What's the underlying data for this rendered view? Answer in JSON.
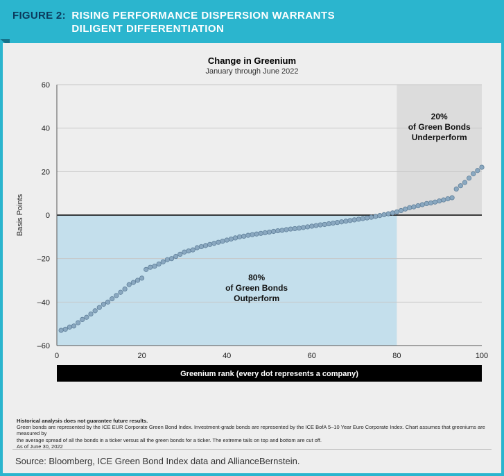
{
  "figure_label": "FIGURE 2:",
  "figure_title_line1": "RISING PERFORMANCE DISPERSION WARRANTS",
  "figure_title_line2": "DILIGENT DIFFERENTIATION",
  "chart": {
    "type": "scatter",
    "title": "Change in Greenium",
    "subtitle": "January through June 2022",
    "ylabel": "Basis Points",
    "xlabel_bar": "Greenium rank (every dot represents a company)",
    "xlim": [
      0,
      100
    ],
    "ylim": [
      -60,
      60
    ],
    "yticks": [
      -60,
      -40,
      -20,
      0,
      20,
      40,
      60
    ],
    "xticks": [
      0,
      20,
      40,
      60,
      80,
      100
    ],
    "background_color": "#eeeeee",
    "grid_color": "#c7c7c7",
    "axis_color": "#555555",
    "zero_line_color": "#000000",
    "marker_color": "#8aa8c0",
    "marker_stroke": "#5f7f99",
    "marker_radius": 3.2,
    "label_fontsize": 11,
    "tick_fontsize": 11,
    "xlabel_bar_bg": "#000000",
    "xlabel_bar_text_color": "#ffffff",
    "regions": {
      "outperform": {
        "x_range": [
          0,
          80
        ],
        "y_range": [
          -60,
          0
        ],
        "fill": "#bcdceb",
        "fill_opacity": 0.85,
        "label_line1": "80%",
        "label_line2": "of Green Bonds",
        "label_line3": "Outperform"
      },
      "underperform": {
        "x_range": [
          80,
          100
        ],
        "y_range": [
          0,
          60
        ],
        "fill": "#d9d9d9",
        "fill_opacity": 0.9,
        "label_line1": "20%",
        "label_line2": "of Green Bonds",
        "label_line3": "Underperform"
      }
    },
    "points": [
      {
        "x": 1,
        "y": -53
      },
      {
        "x": 2,
        "y": -52.5
      },
      {
        "x": 3,
        "y": -51.5
      },
      {
        "x": 4,
        "y": -51
      },
      {
        "x": 5,
        "y": -49.5
      },
      {
        "x": 6,
        "y": -48
      },
      {
        "x": 7,
        "y": -47
      },
      {
        "x": 8,
        "y": -45.5
      },
      {
        "x": 9,
        "y": -44
      },
      {
        "x": 10,
        "y": -42.5
      },
      {
        "x": 11,
        "y": -41
      },
      {
        "x": 12,
        "y": -40
      },
      {
        "x": 13,
        "y": -38.5
      },
      {
        "x": 14,
        "y": -37
      },
      {
        "x": 15,
        "y": -35.5
      },
      {
        "x": 16,
        "y": -34
      },
      {
        "x": 17,
        "y": -32
      },
      {
        "x": 18,
        "y": -31
      },
      {
        "x": 19,
        "y": -30
      },
      {
        "x": 20,
        "y": -29
      },
      {
        "x": 21,
        "y": -25
      },
      {
        "x": 22,
        "y": -24
      },
      {
        "x": 23,
        "y": -23.5
      },
      {
        "x": 24,
        "y": -22.5
      },
      {
        "x": 25,
        "y": -21.5
      },
      {
        "x": 26,
        "y": -20.5
      },
      {
        "x": 27,
        "y": -20
      },
      {
        "x": 28,
        "y": -19
      },
      {
        "x": 29,
        "y": -18
      },
      {
        "x": 30,
        "y": -17
      },
      {
        "x": 31,
        "y": -16.5
      },
      {
        "x": 32,
        "y": -16
      },
      {
        "x": 33,
        "y": -15
      },
      {
        "x": 34,
        "y": -14.5
      },
      {
        "x": 35,
        "y": -14
      },
      {
        "x": 36,
        "y": -13.5
      },
      {
        "x": 37,
        "y": -13
      },
      {
        "x": 38,
        "y": -12.5
      },
      {
        "x": 39,
        "y": -12
      },
      {
        "x": 40,
        "y": -11.5
      },
      {
        "x": 41,
        "y": -11
      },
      {
        "x": 42,
        "y": -10.5
      },
      {
        "x": 43,
        "y": -10
      },
      {
        "x": 44,
        "y": -9.7
      },
      {
        "x": 45,
        "y": -9.3
      },
      {
        "x": 46,
        "y": -9
      },
      {
        "x": 47,
        "y": -8.7
      },
      {
        "x": 48,
        "y": -8.4
      },
      {
        "x": 49,
        "y": -8.1
      },
      {
        "x": 50,
        "y": -7.8
      },
      {
        "x": 51,
        "y": -7.5
      },
      {
        "x": 52,
        "y": -7.2
      },
      {
        "x": 53,
        "y": -7
      },
      {
        "x": 54,
        "y": -6.7
      },
      {
        "x": 55,
        "y": -6.4
      },
      {
        "x": 56,
        "y": -6.2
      },
      {
        "x": 57,
        "y": -6
      },
      {
        "x": 58,
        "y": -5.7
      },
      {
        "x": 59,
        "y": -5.4
      },
      {
        "x": 60,
        "y": -5.1
      },
      {
        "x": 61,
        "y": -4.8
      },
      {
        "x": 62,
        "y": -4.5
      },
      {
        "x": 63,
        "y": -4.3
      },
      {
        "x": 64,
        "y": -4
      },
      {
        "x": 65,
        "y": -3.7
      },
      {
        "x": 66,
        "y": -3.4
      },
      {
        "x": 67,
        "y": -3.1
      },
      {
        "x": 68,
        "y": -2.8
      },
      {
        "x": 69,
        "y": -2.5
      },
      {
        "x": 70,
        "y": -2.2
      },
      {
        "x": 71,
        "y": -1.9
      },
      {
        "x": 72,
        "y": -1.6
      },
      {
        "x": 73,
        "y": -1.3
      },
      {
        "x": 74,
        "y": -1
      },
      {
        "x": 75,
        "y": -0.6
      },
      {
        "x": 76,
        "y": -0.2
      },
      {
        "x": 77,
        "y": 0.2
      },
      {
        "x": 78,
        "y": 0.6
      },
      {
        "x": 79,
        "y": 1
      },
      {
        "x": 80,
        "y": 1.5
      },
      {
        "x": 81,
        "y": 2.1
      },
      {
        "x": 82,
        "y": 2.8
      },
      {
        "x": 83,
        "y": 3.4
      },
      {
        "x": 84,
        "y": 3.8
      },
      {
        "x": 85,
        "y": 4.3
      },
      {
        "x": 86,
        "y": 4.8
      },
      {
        "x": 87,
        "y": 5.3
      },
      {
        "x": 88,
        "y": 5.6
      },
      {
        "x": 89,
        "y": 6
      },
      {
        "x": 90,
        "y": 6.5
      },
      {
        "x": 91,
        "y": 7
      },
      {
        "x": 92,
        "y": 7.5
      },
      {
        "x": 93,
        "y": 8
      },
      {
        "x": 94,
        "y": 12
      },
      {
        "x": 95,
        "y": 13.5
      },
      {
        "x": 96,
        "y": 15
      },
      {
        "x": 97,
        "y": 17
      },
      {
        "x": 98,
        "y": 19
      },
      {
        "x": 99,
        "y": 20.5
      },
      {
        "x": 100,
        "y": 22
      }
    ]
  },
  "disclaimer": {
    "bold": "Historical analysis does not guarantee future results.",
    "line1": "Green bonds are represented by the ICE EUR Corporate Green Bond Index. Investment-grade bonds are represented by the ICE BofA 5–10 Year Euro Corporate Index. Chart assumes that greeniums are measured by",
    "line2": "the average spread of all the bonds in a ticker versus all the green bonds for a ticker. The extreme tails on top and bottom are cut off.",
    "line3": "As of June 30, 2022"
  },
  "source": "Source: Bloomberg, ICE Green Bond Index data and AllianceBernstein."
}
